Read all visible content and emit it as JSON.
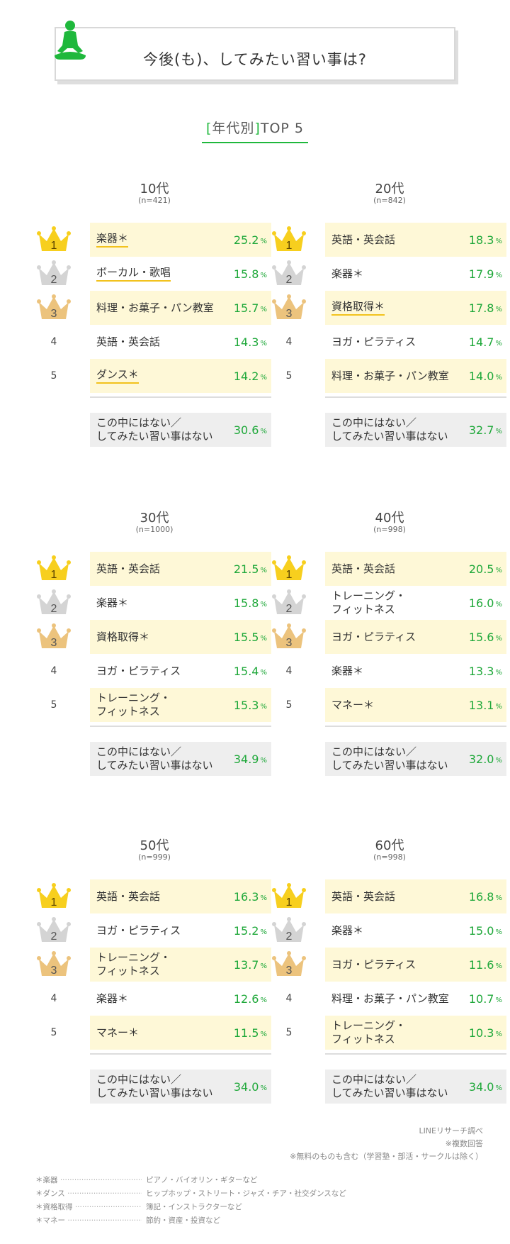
{
  "header": {
    "title": "今後(も)、してみたい習い事は?"
  },
  "subtitle": {
    "open": "[",
    "text": "年代別",
    "close": "]",
    "suffix": "TOP 5"
  },
  "colors": {
    "accent_green": "#1fa83a",
    "highlight": "#fef8d7",
    "gold": "#f2c21d",
    "silver": "#d4d4d4",
    "bronze": "#ecc37d"
  },
  "groups": [
    {
      "age": "10代",
      "n": "(n=421)",
      "rows": [
        {
          "rank": "1",
          "label": "楽器＊",
          "pct": "25.2",
          "underline": true
        },
        {
          "rank": "2",
          "label": "ボーカル・歌唱",
          "pct": "15.8",
          "underline": true
        },
        {
          "rank": "3",
          "label": "料理・お菓子・パン教室",
          "pct": "15.7",
          "underline": false
        },
        {
          "rank": "4",
          "label": "英語・英会話",
          "pct": "14.3",
          "underline": false
        },
        {
          "rank": "5",
          "label": "ダンス＊",
          "pct": "14.2",
          "underline": true
        }
      ],
      "none": {
        "label": "この中にはない／\nしてみたい習い事はない",
        "pct": "30.6"
      }
    },
    {
      "age": "20代",
      "n": "(n=842)",
      "rows": [
        {
          "rank": "1",
          "label": "英語・英会話",
          "pct": "18.3",
          "underline": false
        },
        {
          "rank": "2",
          "label": "楽器＊",
          "pct": "17.9",
          "underline": false
        },
        {
          "rank": "3",
          "label": "資格取得＊",
          "pct": "17.8",
          "underline": true
        },
        {
          "rank": "4",
          "label": "ヨガ・ピラティス",
          "pct": "14.7",
          "underline": false
        },
        {
          "rank": "5",
          "label": "料理・お菓子・パン教室",
          "pct": "14.0",
          "underline": false
        }
      ],
      "none": {
        "label": "この中にはない／\nしてみたい習い事はない",
        "pct": "32.7"
      }
    },
    {
      "age": "30代",
      "n": "(n=1000)",
      "rows": [
        {
          "rank": "1",
          "label": "英語・英会話",
          "pct": "21.5",
          "underline": false
        },
        {
          "rank": "2",
          "label": "楽器＊",
          "pct": "15.8",
          "underline": false
        },
        {
          "rank": "3",
          "label": "資格取得＊",
          "pct": "15.5",
          "underline": false
        },
        {
          "rank": "4",
          "label": "ヨガ・ピラティス",
          "pct": "15.4",
          "underline": false
        },
        {
          "rank": "5",
          "label": "トレーニング・\nフィットネス",
          "pct": "15.3",
          "underline": false
        }
      ],
      "none": {
        "label": "この中にはない／\nしてみたい習い事はない",
        "pct": "34.9"
      }
    },
    {
      "age": "40代",
      "n": "(n=998)",
      "rows": [
        {
          "rank": "1",
          "label": "英語・英会話",
          "pct": "20.5",
          "underline": false
        },
        {
          "rank": "2",
          "label": "トレーニング・\nフィットネス",
          "pct": "16.0",
          "underline": false
        },
        {
          "rank": "3",
          "label": "ヨガ・ピラティス",
          "pct": "15.6",
          "underline": false
        },
        {
          "rank": "4",
          "label": "楽器＊",
          "pct": "13.3",
          "underline": false
        },
        {
          "rank": "5",
          "label": "マネー＊",
          "pct": "13.1",
          "underline": false
        }
      ],
      "none": {
        "label": "この中にはない／\nしてみたい習い事はない",
        "pct": "32.0"
      }
    },
    {
      "age": "50代",
      "n": "(n=999)",
      "rows": [
        {
          "rank": "1",
          "label": "英語・英会話",
          "pct": "16.3",
          "underline": false
        },
        {
          "rank": "2",
          "label": "ヨガ・ピラティス",
          "pct": "15.2",
          "underline": false
        },
        {
          "rank": "3",
          "label": "トレーニング・\nフィットネス",
          "pct": "13.7",
          "underline": false
        },
        {
          "rank": "4",
          "label": "楽器＊",
          "pct": "12.6",
          "underline": false
        },
        {
          "rank": "5",
          "label": "マネー＊",
          "pct": "11.5",
          "underline": false
        }
      ],
      "none": {
        "label": "この中にはない／\nしてみたい習い事はない",
        "pct": "34.0"
      }
    },
    {
      "age": "60代",
      "n": "(n=998)",
      "rows": [
        {
          "rank": "1",
          "label": "英語・英会話",
          "pct": "16.8",
          "underline": false
        },
        {
          "rank": "2",
          "label": "楽器＊",
          "pct": "15.0",
          "underline": false
        },
        {
          "rank": "3",
          "label": "ヨガ・ピラティス",
          "pct": "11.6",
          "underline": false
        },
        {
          "rank": "4",
          "label": "料理・お菓子・パン教室",
          "pct": "10.7",
          "underline": false
        },
        {
          "rank": "5",
          "label": "トレーニング・\nフィットネス",
          "pct": "10.3",
          "underline": false
        }
      ],
      "none": {
        "label": "この中にはない／\nしてみたい習い事はない",
        "pct": "34.0"
      }
    }
  ],
  "unit": "%",
  "notes": [
    "LINEリサーチ調べ",
    "※複数回答",
    "※無料のものも含む（学習塾・部活・サークルは除く）"
  ],
  "footnotes": [
    {
      "term": "＊楽器",
      "desc": "ピアノ・バイオリン・ギターなど"
    },
    {
      "term": "＊ダンス",
      "desc": "ヒップホップ・ストリート・ジャズ・チア・社交ダンスなど"
    },
    {
      "term": "＊資格取得",
      "desc": "簿記・インストラクターなど"
    },
    {
      "term": "＊マネー",
      "desc": "節約・資産・投資など"
    }
  ]
}
